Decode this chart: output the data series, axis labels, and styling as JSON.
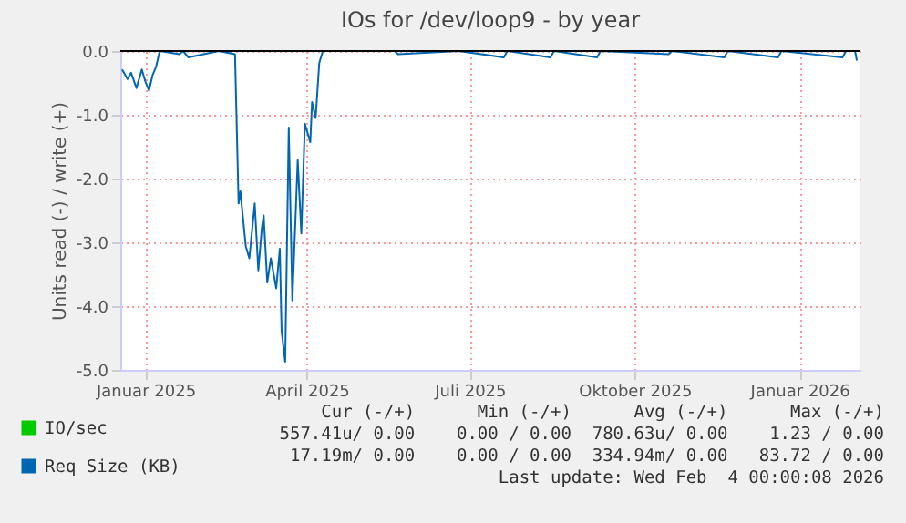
{
  "chart_data": {
    "type": "line",
    "title": "IOs for /dev/loop9 - by year",
    "ylabel": "Units read (-) / write (+)",
    "x": [
      "2024-12-19",
      "2024-12-22",
      "2024-12-24",
      "2024-12-27",
      "2024-12-30",
      "2025-01-01",
      "2025-01-03",
      "2025-01-05",
      "2025-01-07",
      "2025-01-09",
      "2025-01-20",
      "2025-01-22",
      "2025-01-25",
      "2025-02-11",
      "2025-02-20",
      "2025-02-22",
      "2025-02-23",
      "2025-02-26",
      "2025-02-28",
      "2025-03-03",
      "2025-03-05",
      "2025-03-07",
      "2025-03-08",
      "2025-03-10",
      "2025-03-12",
      "2025-03-15",
      "2025-03-17",
      "2025-03-18",
      "2025-03-20",
      "2025-03-22",
      "2025-03-24",
      "2025-03-27",
      "2025-03-29",
      "2025-03-31",
      "2025-04-03",
      "2025-04-04",
      "2025-04-06",
      "2025-04-08",
      "2025-04-10",
      "2025-05-20",
      "2025-05-22",
      "2025-06-25",
      "2025-07-20",
      "2025-07-22",
      "2025-08-15",
      "2025-08-17",
      "2025-09-10",
      "2025-09-12",
      "2025-10-20",
      "2025-10-22",
      "2025-11-20",
      "2025-11-22",
      "2025-12-20",
      "2025-12-22",
      "2026-01-25",
      "2026-01-27",
      "2026-02-01",
      "2026-02-02"
    ],
    "series": [
      {
        "name": "IO/sec",
        "color": "#00cc00",
        "values": [
          null,
          null,
          null,
          null,
          null,
          null,
          null,
          null,
          null,
          null,
          null,
          null,
          null,
          null,
          null,
          null,
          null,
          null,
          null,
          null,
          null,
          null,
          null,
          null,
          null,
          null,
          null,
          null,
          null,
          null,
          null,
          null,
          null,
          null,
          null,
          null,
          null,
          null,
          null,
          null,
          null,
          null,
          null,
          null,
          null,
          null,
          null,
          null,
          null,
          null,
          null,
          null,
          null,
          null,
          null,
          null,
          null,
          null
        ]
      },
      {
        "name": "Req Size (KB)",
        "color": "#0066b3",
        "values": [
          -0.29,
          -0.44,
          -0.34,
          -0.58,
          -0.29,
          -0.48,
          -0.62,
          -0.38,
          -0.24,
          0,
          -0.05,
          0,
          -0.1,
          0,
          -0.05,
          -2.39,
          -2.2,
          -3.06,
          -3.25,
          -2.39,
          -3.44,
          -2.77,
          -2.58,
          -3.63,
          -3.25,
          -3.72,
          -3.1,
          -4.39,
          -4.87,
          -1.2,
          -3.91,
          -1.71,
          -2.86,
          -1.14,
          -1.43,
          -0.8,
          -1.05,
          -0.19,
          0,
          0,
          -0.05,
          0,
          -0.1,
          0,
          -0.1,
          0,
          -0.1,
          0,
          -0.05,
          0,
          -0.1,
          0,
          -0.1,
          0,
          -0.1,
          0,
          0,
          -0.15
        ]
      }
    ],
    "xlim": [
      "2024-12-18",
      "2026-02-04"
    ],
    "xticks": [
      {
        "value": "2025-01-01",
        "label": "Januar 2025"
      },
      {
        "value": "2025-04-01",
        "label": "April 2025"
      },
      {
        "value": "2025-07-01",
        "label": "Juli 2025"
      },
      {
        "value": "2025-10-01",
        "label": "Oktober 2025"
      },
      {
        "value": "2026-01-01",
        "label": "Januar 2026"
      }
    ],
    "ylim": [
      -5,
      0
    ],
    "yticks": [
      {
        "value": 0,
        "label": "0.0"
      },
      {
        "value": -1,
        "label": "-1.0"
      },
      {
        "value": -2,
        "label": "-2.0"
      },
      {
        "value": -3,
        "label": "-3.0"
      },
      {
        "value": -4,
        "label": "-4.0"
      },
      {
        "value": -5,
        "label": "-5.0"
      }
    ],
    "ref_lines": [
      {
        "axis": "y",
        "value": 0,
        "color": "#000000"
      }
    ],
    "grid": true,
    "legend": "bottom left",
    "annotations": [
      "Cur (-/+)      Min (-/+)      Avg (-/+)      Max (-/+)",
      "557.41u/ 0.00    0.00 / 0.00  780.63u/ 0.00    1.23 / 0.00",
      "17.19m/ 0.00    0.00 / 0.00  334.94m/ 0.00   83.72 / 0.00",
      "Last update: Wed Feb  4 00:00:08 2026"
    ]
  }
}
